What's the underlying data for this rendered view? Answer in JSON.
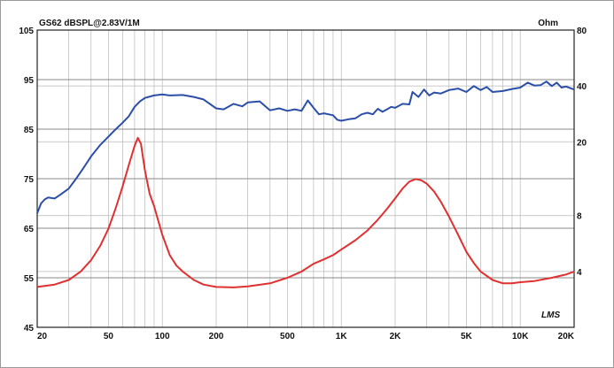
{
  "chart_data": {
    "type": "line",
    "title": "GS62 dBSPL@2.83V/1M",
    "right_axis_unit": "Ohm",
    "signature": "LMS",
    "x_scale": "log",
    "xlim": [
      20,
      20000
    ],
    "x_ticks": [
      {
        "value": 20,
        "label": "20"
      },
      {
        "value": 50,
        "label": "50"
      },
      {
        "value": 100,
        "label": "100"
      },
      {
        "value": 200,
        "label": "200"
      },
      {
        "value": 500,
        "label": "500"
      },
      {
        "value": 1000,
        "label": "1K"
      },
      {
        "value": 2000,
        "label": "2K"
      },
      {
        "value": 5000,
        "label": "5K"
      },
      {
        "value": 10000,
        "label": "10K"
      },
      {
        "value": 20000,
        "label": "20K"
      }
    ],
    "y_left": {
      "unit": "dBSPL",
      "range": [
        45,
        105
      ],
      "ticks": [
        45,
        55,
        65,
        75,
        85,
        95,
        105
      ]
    },
    "y_right": {
      "unit": "Ohm",
      "scale": "log",
      "range": [
        2,
        80
      ],
      "ticks": [
        4,
        8,
        20,
        40,
        80
      ],
      "tick_labels": [
        "4",
        "8",
        "20",
        "40",
        "80"
      ]
    },
    "grid": true,
    "series": [
      {
        "axis": "left",
        "color": "#2b4fa8",
        "points": [
          [
            20,
            68
          ],
          [
            21,
            70
          ],
          [
            22,
            70.8
          ],
          [
            23,
            71.2
          ],
          [
            25,
            71
          ],
          [
            27,
            71.8
          ],
          [
            30,
            73
          ],
          [
            33,
            75
          ],
          [
            36,
            77
          ],
          [
            40,
            79.5
          ],
          [
            45,
            81.8
          ],
          [
            50,
            83.5
          ],
          [
            55,
            85
          ],
          [
            60,
            86.3
          ],
          [
            65,
            87.6
          ],
          [
            70,
            89.5
          ],
          [
            75,
            90.6
          ],
          [
            80,
            91.3
          ],
          [
            90,
            91.8
          ],
          [
            100,
            92
          ],
          [
            110,
            91.8
          ],
          [
            130,
            91.9
          ],
          [
            150,
            91.5
          ],
          [
            170,
            91
          ],
          [
            200,
            89.2
          ],
          [
            220,
            89
          ],
          [
            250,
            90.1
          ],
          [
            280,
            89.6
          ],
          [
            300,
            90.4
          ],
          [
            350,
            90.6
          ],
          [
            400,
            88.8
          ],
          [
            450,
            89.2
          ],
          [
            500,
            88.7
          ],
          [
            550,
            89
          ],
          [
            600,
            88.7
          ],
          [
            650,
            90.8
          ],
          [
            700,
            89.3
          ],
          [
            750,
            88
          ],
          [
            800,
            88.2
          ],
          [
            900,
            87.8
          ],
          [
            950,
            86.9
          ],
          [
            1000,
            86.7
          ],
          [
            1100,
            87
          ],
          [
            1200,
            87.2
          ],
          [
            1300,
            88
          ],
          [
            1400,
            88.3
          ],
          [
            1500,
            88
          ],
          [
            1600,
            89.1
          ],
          [
            1700,
            88.5
          ],
          [
            1800,
            89
          ],
          [
            1900,
            89.5
          ],
          [
            2000,
            89.3
          ],
          [
            2200,
            90.1
          ],
          [
            2400,
            90
          ],
          [
            2500,
            92.5
          ],
          [
            2700,
            91.5
          ],
          [
            2900,
            93
          ],
          [
            3100,
            91.8
          ],
          [
            3300,
            92.4
          ],
          [
            3600,
            92.2
          ],
          [
            4000,
            92.9
          ],
          [
            4500,
            93.2
          ],
          [
            5000,
            92.5
          ],
          [
            5500,
            93.7
          ],
          [
            6000,
            92.9
          ],
          [
            6500,
            93.5
          ],
          [
            7000,
            92.5
          ],
          [
            8000,
            92.7
          ],
          [
            9000,
            93.1
          ],
          [
            10000,
            93.4
          ],
          [
            11000,
            94.4
          ],
          [
            12000,
            93.8
          ],
          [
            13000,
            93.9
          ],
          [
            14000,
            94.6
          ],
          [
            15000,
            93.7
          ],
          [
            16000,
            94.4
          ],
          [
            17000,
            93.4
          ],
          [
            18000,
            93.6
          ],
          [
            20000,
            93
          ]
        ]
      },
      {
        "axis": "right",
        "color": "#e03030",
        "points": [
          [
            20,
            3.3
          ],
          [
            25,
            3.4
          ],
          [
            30,
            3.6
          ],
          [
            35,
            4.0
          ],
          [
            40,
            4.6
          ],
          [
            45,
            5.5
          ],
          [
            50,
            6.8
          ],
          [
            55,
            8.8
          ],
          [
            60,
            11.5
          ],
          [
            65,
            15
          ],
          [
            70,
            19
          ],
          [
            73,
            21
          ],
          [
            76,
            19.5
          ],
          [
            80,
            14
          ],
          [
            85,
            10.5
          ],
          [
            90,
            9
          ],
          [
            100,
            6.3
          ],
          [
            110,
            4.9
          ],
          [
            120,
            4.3
          ],
          [
            130,
            4.0
          ],
          [
            150,
            3.6
          ],
          [
            170,
            3.4
          ],
          [
            200,
            3.3
          ],
          [
            250,
            3.28
          ],
          [
            300,
            3.32
          ],
          [
            400,
            3.45
          ],
          [
            500,
            3.7
          ],
          [
            600,
            4.0
          ],
          [
            700,
            4.4
          ],
          [
            800,
            4.65
          ],
          [
            900,
            4.9
          ],
          [
            1000,
            5.25
          ],
          [
            1200,
            5.9
          ],
          [
            1400,
            6.65
          ],
          [
            1600,
            7.6
          ],
          [
            1800,
            8.7
          ],
          [
            2000,
            9.9
          ],
          [
            2200,
            11.2
          ],
          [
            2400,
            12.2
          ],
          [
            2600,
            12.6
          ],
          [
            2800,
            12.4
          ],
          [
            3000,
            11.9
          ],
          [
            3300,
            10.8
          ],
          [
            3600,
            9.5
          ],
          [
            4000,
            7.9
          ],
          [
            4500,
            6.3
          ],
          [
            5000,
            5.1
          ],
          [
            5500,
            4.45
          ],
          [
            6000,
            4.0
          ],
          [
            7000,
            3.6
          ],
          [
            8000,
            3.45
          ],
          [
            9000,
            3.45
          ],
          [
            10000,
            3.5
          ],
          [
            12000,
            3.55
          ],
          [
            15000,
            3.7
          ],
          [
            18000,
            3.85
          ],
          [
            20000,
            4.0
          ]
        ]
      }
    ]
  }
}
